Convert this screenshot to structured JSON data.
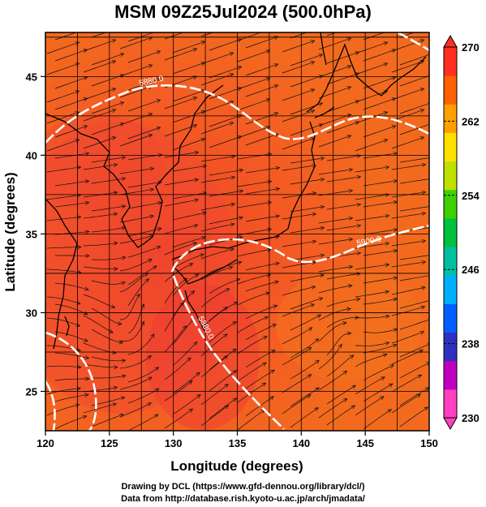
{
  "title": "MSM 09Z25Jul2024 (500.0hPa)",
  "x_axis": {
    "label": "Longitude (degrees)",
    "ticks": [
      "120",
      "125",
      "130",
      "135",
      "140",
      "145",
      "150"
    ]
  },
  "y_axis": {
    "label": "Latitude  (degrees)",
    "ticks": [
      "25",
      "30",
      "35",
      "40",
      "45"
    ]
  },
  "colorbar": {
    "labels": [
      "270",
      "262",
      "254",
      "246",
      "238",
      "230"
    ],
    "min": 230,
    "max": 270,
    "colors": [
      "#ff40c0",
      "#c000c0",
      "#3030c0",
      "#0060ff",
      "#00b0ff",
      "#00c0a0",
      "#00c040",
      "#40d000",
      "#c0e000",
      "#ffe000",
      "#ffa000",
      "#ff6000",
      "#ff3020"
    ]
  },
  "contours": [
    {
      "label": "5880.0"
    },
    {
      "label": "5900.0"
    },
    {
      "label": "5880.0"
    }
  ],
  "footer": {
    "line1": "Drawing by DCL (https://www.gfd-dennou.org/library/dcl/)",
    "line2": "Data from http://database.rish.kyoto-u.ac.jp/arch/jmadata/"
  }
}
